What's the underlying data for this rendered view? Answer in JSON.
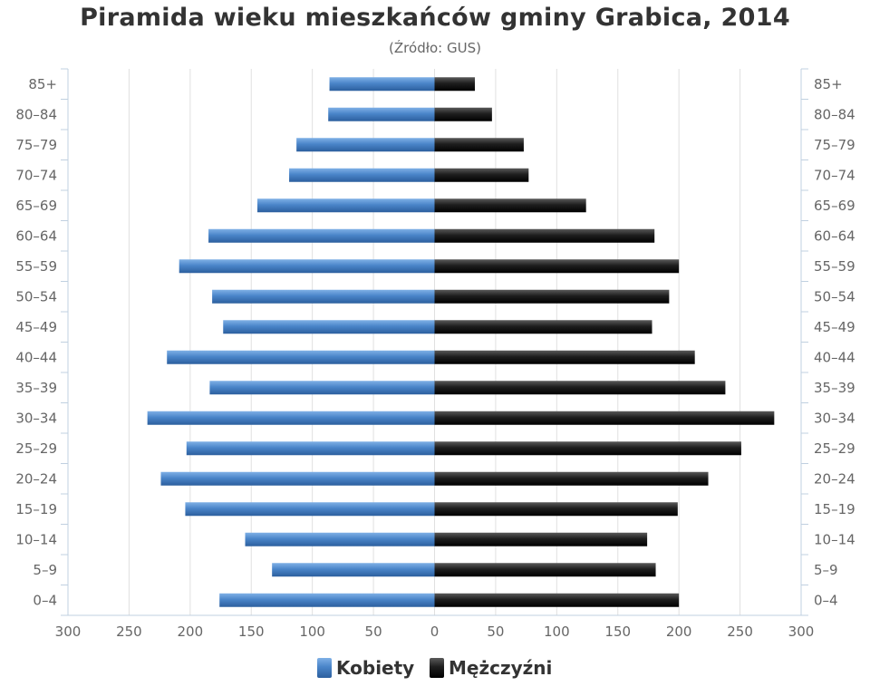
{
  "chart_data": {
    "type": "bar",
    "title": "Piramida wieku mieszkańców gminy Grabica, 2014",
    "subtitle": "(Źródło: GUS)",
    "categories": [
      "85+",
      "80-84",
      "75-79",
      "70-74",
      "65-69",
      "60-64",
      "55-59",
      "50-54",
      "45-49",
      "40-44",
      "35-39",
      "30-34",
      "25-29",
      "20-24",
      "15-19",
      "10-14",
      "5-9",
      "0-4"
    ],
    "series": [
      {
        "name": "Kobiety",
        "color": "#4a7fbf",
        "values": [
          86,
          87,
          113,
          119,
          145,
          185,
          209,
          182,
          173,
          219,
          184,
          235,
          203,
          224,
          204,
          155,
          133,
          176
        ]
      },
      {
        "name": "Mężczyźni",
        "color": "#1a1a1a",
        "values": [
          33,
          47,
          73,
          77,
          124,
          180,
          200,
          192,
          178,
          213,
          238,
          278,
          251,
          224,
          199,
          174,
          181,
          200
        ]
      }
    ],
    "xlim": [
      -300,
      300
    ],
    "xticks": [
      "300",
      "250",
      "200",
      "150",
      "100",
      "50",
      "0",
      "50",
      "100",
      "150",
      "200",
      "250",
      "300"
    ],
    "grid": true,
    "legend": "bottom-center"
  }
}
